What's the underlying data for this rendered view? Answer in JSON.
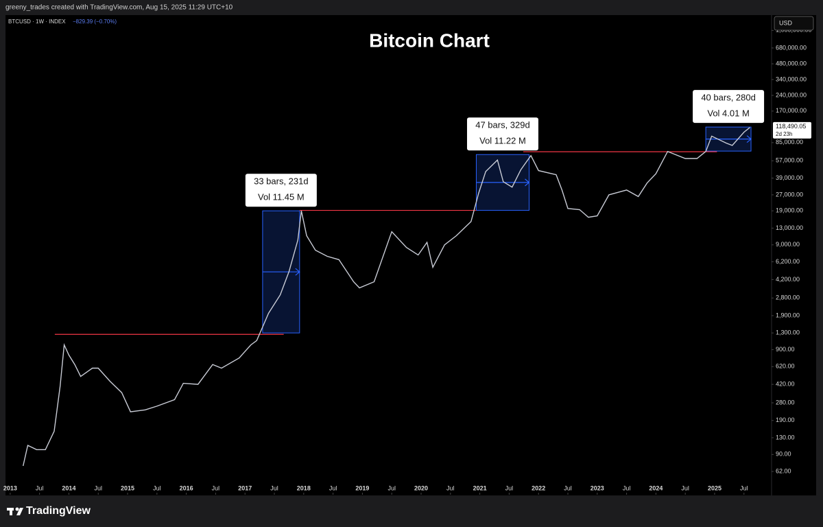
{
  "header": {
    "credit": "greeny_trades created with TradingView.com, Aug 15, 2025 11:29 UTC+10"
  },
  "footer": {
    "brand": "TradingView"
  },
  "chart_data": {
    "type": "line",
    "title": "Bitcoin Chart",
    "symbol": "BTCUSD · 1W · INDEX",
    "change": "−829.39 (−0.70%)",
    "currency": "USD",
    "log_scale": true,
    "last_price": {
      "value": 118490.05,
      "label": "118,490.05"
    },
    "countdown": "2d 23h",
    "x": [
      2013.22,
      2013.3,
      2013.45,
      2013.6,
      2013.75,
      2013.85,
      2013.92,
      2014.0,
      2014.1,
      2014.2,
      2014.4,
      2014.5,
      2014.7,
      2014.9,
      2015.05,
      2015.3,
      2015.5,
      2015.8,
      2015.95,
      2016.2,
      2016.45,
      2016.6,
      2016.9,
      2017.1,
      2017.2,
      2017.4,
      2017.6,
      2017.75,
      2017.9,
      2017.96,
      2018.05,
      2018.2,
      2018.4,
      2018.6,
      2018.85,
      2018.95,
      2019.2,
      2019.45,
      2019.5,
      2019.75,
      2019.95,
      2020.1,
      2020.2,
      2020.4,
      2020.6,
      2020.85,
      2020.98,
      2021.1,
      2021.3,
      2021.4,
      2021.55,
      2021.7,
      2021.87,
      2022.0,
      2022.3,
      2022.4,
      2022.5,
      2022.7,
      2022.85,
      2023.0,
      2023.2,
      2023.5,
      2023.7,
      2023.85,
      2024.0,
      2024.2,
      2024.5,
      2024.7,
      2024.85,
      2024.95,
      2025.2,
      2025.3,
      2025.5,
      2025.6
    ],
    "series": [
      {
        "color": "#c9ccd6",
        "values": [
          70,
          110,
          100,
          100,
          150,
          400,
          1000,
          800,
          650,
          500,
          600,
          600,
          450,
          350,
          230,
          240,
          260,
          300,
          430,
          420,
          650,
          600,
          750,
          1000,
          1100,
          2000,
          3000,
          5000,
          10000,
          19000,
          11000,
          8000,
          7000,
          6500,
          4000,
          3500,
          4000,
          10000,
          12000,
          8500,
          7200,
          9500,
          5500,
          9000,
          11000,
          15000,
          28000,
          45000,
          58000,
          36000,
          32000,
          47000,
          64000,
          46000,
          42000,
          30000,
          20000,
          19500,
          16500,
          17000,
          27000,
          30000,
          26000,
          35000,
          43000,
          70000,
          60000,
          60000,
          70000,
          98000,
          84000,
          80000,
          107000,
          118490
        ]
      }
    ],
    "levels": [
      {
        "x": [
          2013.76,
          2017.66
        ],
        "value": 1260
      },
      {
        "x": [
          2017.93,
          2020.94
        ],
        "value": 19200
      },
      {
        "x": [
          2021.74,
          2025.04
        ],
        "value": 69600
      }
    ],
    "ranges": [
      {
        "x": [
          2017.3,
          2017.93
        ],
        "y": [
          1300,
          19000
        ],
        "label": [
          "33 bars, 231d",
          "Vol 11.45 M"
        ]
      },
      {
        "x": [
          2020.94,
          2021.84
        ],
        "y": [
          19200,
          65400
        ],
        "label": [
          "47 bars, 329d",
          "Vol 11.22 M"
        ]
      },
      {
        "x": [
          2024.85,
          2025.62
        ],
        "y": [
          70600,
          119700
        ],
        "label": [
          "40 bars, 280d",
          "Vol 4.01 M"
        ]
      }
    ],
    "xlim": [
      2012.92,
      2025.97
    ],
    "xticks": [
      2013,
      {
        "value": 2013.5,
        "label": "Jul"
      },
      2014,
      {
        "value": 2014.5,
        "label": "Jul"
      },
      2015,
      {
        "value": 2015.5,
        "label": "Jul"
      },
      2016,
      {
        "value": 2016.5,
        "label": "Jul"
      },
      2017,
      {
        "value": 2017.5,
        "label": "Jul"
      },
      2018,
      {
        "value": 2018.5,
        "label": "Jul"
      },
      2019,
      {
        "value": 2019.5,
        "label": "Jul"
      },
      2020,
      {
        "value": 2020.5,
        "label": "Jul"
      },
      2021,
      {
        "value": 2021.5,
        "label": "Jul"
      },
      2022,
      {
        "value": 2022.5,
        "label": "Jul"
      },
      2023,
      {
        "value": 2023.5,
        "label": "Jul"
      },
      2024,
      {
        "value": 2024.5,
        "label": "Jul"
      },
      2025,
      {
        "value": 2025.5,
        "label": "Jul"
      }
    ],
    "ylim": [
      51,
      1400000
    ],
    "yticks": [
      {
        "value": 62,
        "label": "62.00"
      },
      {
        "value": 90,
        "label": "90.00"
      },
      {
        "value": 130,
        "label": "130.00"
      },
      {
        "value": 190,
        "label": "190.00"
      },
      {
        "value": 280,
        "label": "280.00"
      },
      {
        "value": 420,
        "label": "420.00"
      },
      {
        "value": 620,
        "label": "620.00"
      },
      {
        "value": 900,
        "label": "900.00"
      },
      {
        "value": 1300,
        "label": "1,300.00"
      },
      {
        "value": 1900,
        "label": "1,900.00"
      },
      {
        "value": 2800,
        "label": "2,800.00"
      },
      {
        "value": 4200,
        "label": "4,200.00"
      },
      {
        "value": 6200,
        "label": "6,200.00"
      },
      {
        "value": 9000,
        "label": "9,000.00"
      },
      {
        "value": 13000,
        "label": "13,000.00"
      },
      {
        "value": 19000,
        "label": "19,000.00"
      },
      {
        "value": 27000,
        "label": "27,000.00"
      },
      {
        "value": 39000,
        "label": "39,000.00"
      },
      {
        "value": 57000,
        "label": "57,000.00"
      },
      {
        "value": 85000,
        "label": "85,000.00"
      },
      {
        "value": 170000,
        "label": "170,000.00"
      },
      {
        "value": 240000,
        "label": "240,000.00"
      },
      {
        "value": 340000,
        "label": "340,000.00"
      },
      {
        "value": 480000,
        "label": "480,000.00"
      },
      {
        "value": 680000,
        "label": "680,000.00"
      },
      {
        "value": 1000000,
        "label": "1,000,000.00"
      }
    ]
  }
}
